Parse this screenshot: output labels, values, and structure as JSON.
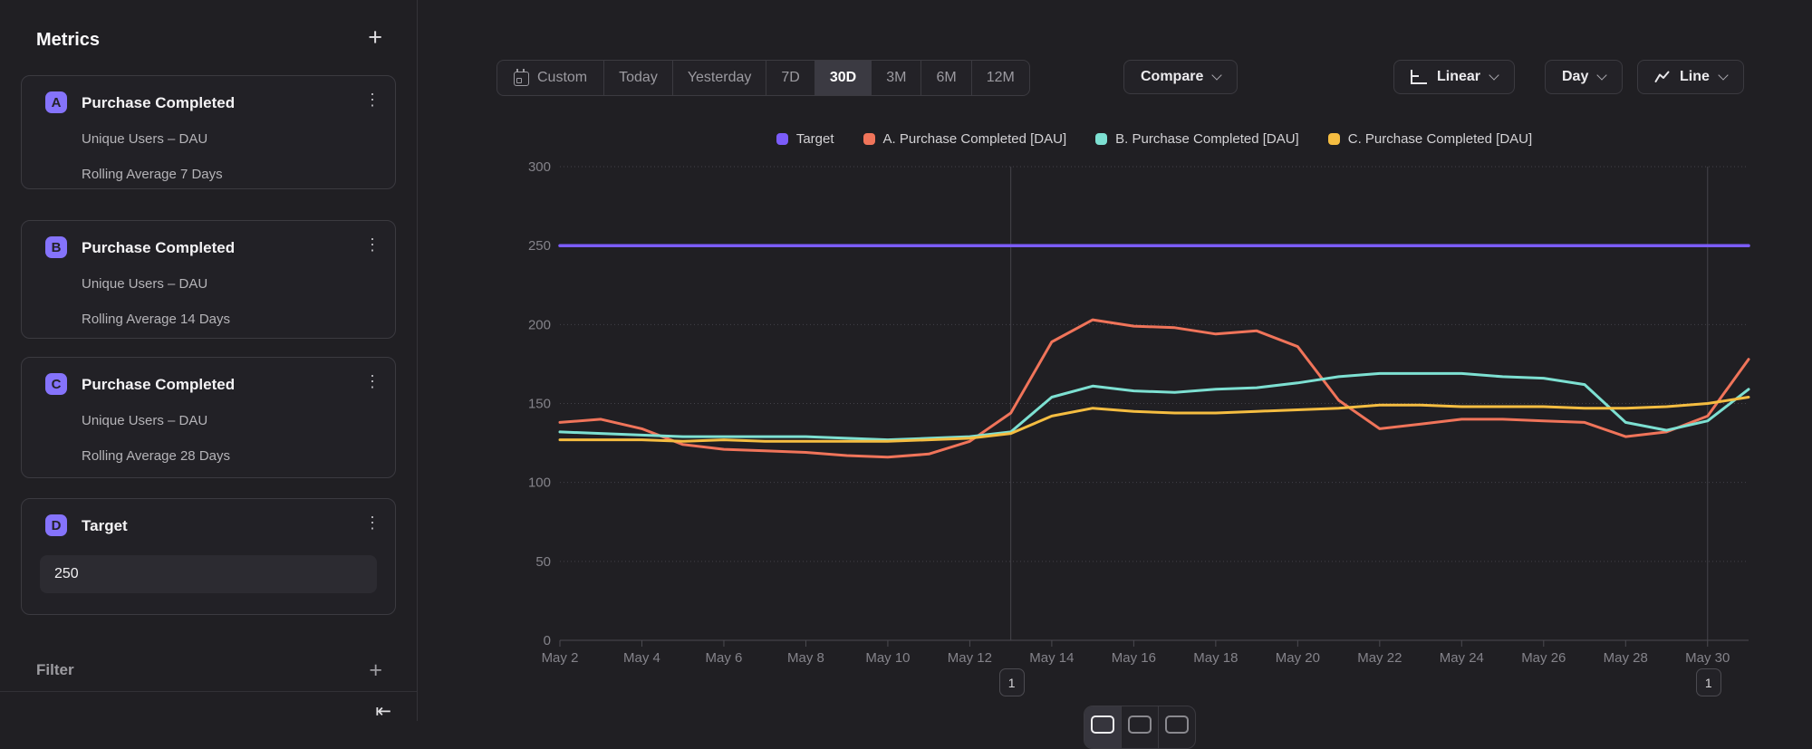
{
  "sidebar": {
    "title": "Metrics",
    "metrics": [
      {
        "badge": "A",
        "title": "Purchase Completed",
        "measurement": "Unique Users – DAU",
        "rolling": "Rolling Average 7 Days"
      },
      {
        "badge": "B",
        "title": "Purchase Completed",
        "measurement": "Unique Users – DAU",
        "rolling": "Rolling Average 14 Days"
      },
      {
        "badge": "C",
        "title": "Purchase Completed",
        "measurement": "Unique Users – DAU",
        "rolling": "Rolling Average 28 Days"
      }
    ],
    "target_card": {
      "badge": "D",
      "title": "Target",
      "value": "250"
    },
    "filter_label": "Filter"
  },
  "toolbar": {
    "ranges": [
      "Custom",
      "Today",
      "Yesterday",
      "7D",
      "30D",
      "3M",
      "6M",
      "12M"
    ],
    "selected_range": "30D",
    "compare_label": "Compare",
    "scale_label": "Linear",
    "granularity_label": "Day",
    "chart_type_label": "Line"
  },
  "icons": {
    "plus": "+",
    "kebab": "⋮",
    "collapse": "⇤"
  },
  "colors": {
    "accent_purple": "#8573fb",
    "background": "#201f23",
    "card_border": "#3b3a40"
  },
  "chart_data": {
    "type": "line",
    "x": [
      "May 2",
      "May 3",
      "May 4",
      "May 5",
      "May 6",
      "May 7",
      "May 8",
      "May 9",
      "May 10",
      "May 11",
      "May 12",
      "May 13",
      "May 14",
      "May 15",
      "May 16",
      "May 17",
      "May 18",
      "May 19",
      "May 20",
      "May 21",
      "May 22",
      "May 23",
      "May 24",
      "May 25",
      "May 26",
      "May 27",
      "May 28",
      "May 29",
      "May 30",
      "May 31"
    ],
    "x_label_every": 2,
    "ylim": [
      0,
      300
    ],
    "yticks": [
      0,
      50,
      100,
      150,
      200,
      250,
      300
    ],
    "grid": "horizontal-dotted",
    "legend_position": "top",
    "series": [
      {
        "name": "Target",
        "color": "#7b5cfa",
        "values": [
          250,
          250,
          250,
          250,
          250,
          250,
          250,
          250,
          250,
          250,
          250,
          250,
          250,
          250,
          250,
          250,
          250,
          250,
          250,
          250,
          250,
          250,
          250,
          250,
          250,
          250,
          250,
          250,
          250,
          250
        ]
      },
      {
        "name": "A. Purchase Completed [DAU]",
        "color": "#f0745a",
        "values": [
          138,
          140,
          134,
          124,
          121,
          120,
          119,
          117,
          116,
          118,
          126,
          144,
          189,
          203,
          199,
          198,
          194,
          196,
          186,
          152,
          134,
          137,
          140,
          140,
          139,
          138,
          129,
          132,
          142,
          178
        ]
      },
      {
        "name": "B. Purchase Completed [DAU]",
        "color": "#7de0d2",
        "values": [
          132,
          131,
          130,
          129,
          129,
          129,
          129,
          128,
          127,
          128,
          129,
          132,
          154,
          161,
          158,
          157,
          159,
          160,
          163,
          167,
          169,
          169,
          169,
          167,
          166,
          162,
          138,
          133,
          139,
          159
        ]
      },
      {
        "name": "C. Purchase Completed [DAU]",
        "color": "#f5bd41",
        "values": [
          127,
          127,
          127,
          126,
          127,
          126,
          126,
          126,
          126,
          127,
          128,
          131,
          142,
          147,
          145,
          144,
          144,
          145,
          146,
          147,
          149,
          149,
          148,
          148,
          148,
          147,
          147,
          148,
          150,
          154
        ]
      }
    ],
    "annotations": [
      {
        "label": "1",
        "index": 11
      },
      {
        "label": "1",
        "index": 28
      }
    ]
  }
}
